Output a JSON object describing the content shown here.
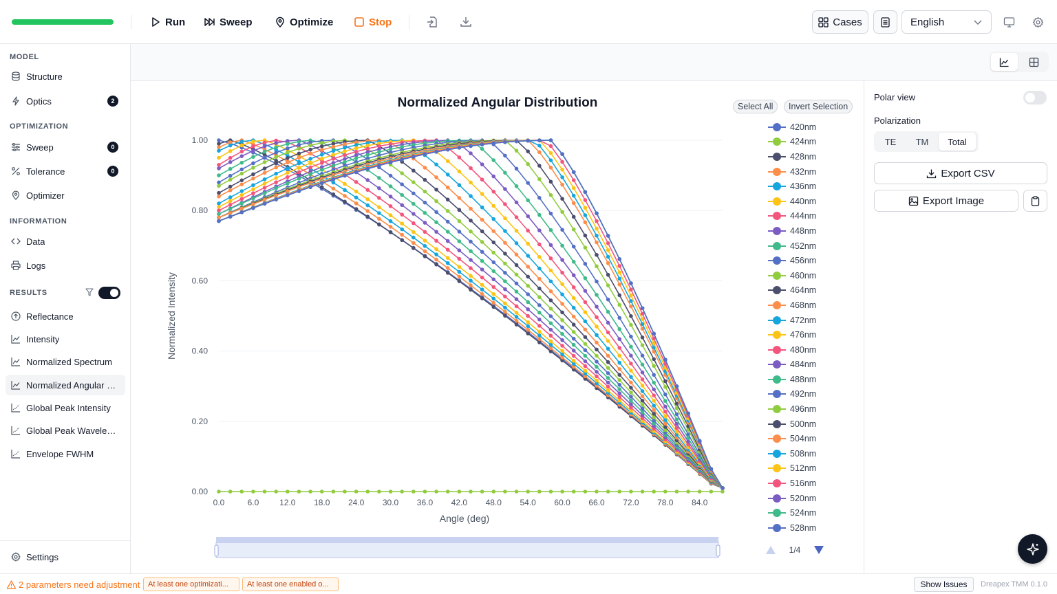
{
  "toolbar": {
    "progress_value": 1.0,
    "run": "Run",
    "sweep": "Sweep",
    "optimize": "Optimize",
    "stop": "Stop",
    "cases": "Cases",
    "language": "English"
  },
  "sidebar": {
    "model_title": "MODEL",
    "structure": "Structure",
    "optics": "Optics",
    "optics_badge": "2",
    "optimization_title": "OPTIMIZATION",
    "sweep": "Sweep",
    "sweep_badge": "0",
    "tolerance": "Tolerance",
    "tolerance_badge": "0",
    "optimizer": "Optimizer",
    "information_title": "INFORMATION",
    "data": "Data",
    "logs": "Logs",
    "results_title": "RESULTS",
    "results_toggle": true,
    "reflectance": "Reflectance",
    "intensity": "Intensity",
    "normalized_spectrum": "Normalized Spectrum",
    "normalized_angular": "Normalized Angular Distribution",
    "global_peak_intensity": "Global Peak Intensity",
    "global_peak_wavelength": "Global Peak Wavelength",
    "envelope_fwhm": "Envelope FWHM",
    "settings": "Settings"
  },
  "chart_controls": {
    "select_all": "Select All",
    "invert_selection": "Invert Selection",
    "page": "1/4"
  },
  "chart_data": {
    "type": "line",
    "title": "Normalized Angular Distribution",
    "xlabel": "Angle (deg)",
    "ylabel": "Normalized Intensity",
    "xlim": [
      0,
      88
    ],
    "ylim": [
      0,
      1
    ],
    "xticks": [
      "0.0",
      "6.0",
      "12.0",
      "18.0",
      "24.0",
      "30.0",
      "36.0",
      "42.0",
      "48.0",
      "54.0",
      "60.0",
      "66.0",
      "72.0",
      "78.0",
      "84.0"
    ],
    "yticks": [
      "0.00",
      "0.20",
      "0.40",
      "0.60",
      "0.80",
      "1.00"
    ],
    "grid": true,
    "legend_position": "right",
    "legend_entries": [
      "420nm",
      "424nm",
      "428nm",
      "432nm",
      "436nm",
      "440nm",
      "444nm",
      "448nm",
      "452nm",
      "456nm",
      "460nm",
      "464nm",
      "468nm",
      "472nm",
      "476nm",
      "480nm",
      "484nm",
      "488nm",
      "492nm",
      "496nm",
      "500nm",
      "504nm",
      "508nm",
      "512nm",
      "516nm",
      "520nm",
      "524nm",
      "528nm"
    ],
    "palette": [
      "#5470c6",
      "#91cc3f",
      "#4b4e6d",
      "#fc8d4a",
      "#16a5dc",
      "#fbc416",
      "#f4557c",
      "#7b5cc3",
      "#3fba8a"
    ],
    "angles_deg": [
      0,
      2,
      4,
      6,
      8,
      10,
      12,
      14,
      16,
      18,
      20,
      22,
      24,
      26,
      28,
      30,
      32,
      34,
      36,
      38,
      40,
      42,
      44,
      46,
      48,
      50,
      52,
      54,
      56,
      58,
      60,
      62,
      64,
      66,
      68,
      70,
      72,
      74,
      76,
      78,
      80,
      82,
      84,
      86,
      88
    ],
    "series": [
      {
        "name": "420nm",
        "start": 1.0,
        "plateau_to": 0,
        "falloff_end": 87.6,
        "falloff_shape": 1.25,
        "peak": 1.0
      },
      {
        "name": "424nm",
        "start": 0.0,
        "flat": true
      },
      {
        "name": "428nm",
        "start": 0.99,
        "plateau_to": 2,
        "falloff_end": 87.6,
        "falloff_shape": 1.2,
        "peak": 1.0
      },
      {
        "name": "432nm",
        "start": 0.98,
        "plateau_to": 4,
        "falloff_end": 87.6,
        "falloff_shape": 1.2,
        "peak": 1.0
      },
      {
        "name": "436nm",
        "start": 0.97,
        "plateau_to": 6,
        "falloff_end": 87.6,
        "falloff_shape": 1.2,
        "peak": 1.0
      },
      {
        "name": "440nm",
        "start": 0.95,
        "plateau_to": 8,
        "falloff_end": 87.6,
        "falloff_shape": 1.2,
        "peak": 1.0
      },
      {
        "name": "444nm",
        "start": 0.93,
        "plateau_to": 11,
        "falloff_end": 87.6,
        "falloff_shape": 1.2,
        "peak": 1.0
      },
      {
        "name": "448nm",
        "start": 0.92,
        "plateau_to": 14,
        "falloff_end": 87.6,
        "falloff_shape": 1.2,
        "peak": 1.0
      },
      {
        "name": "452nm",
        "start": 0.9,
        "plateau_to": 17,
        "falloff_end": 87.6,
        "falloff_shape": 1.2,
        "peak": 1.0
      },
      {
        "name": "456nm",
        "start": 0.88,
        "plateau_to": 20,
        "falloff_end": 87.6,
        "falloff_shape": 1.2,
        "peak": 1.0
      },
      {
        "name": "460nm",
        "start": 0.87,
        "plateau_to": 23,
        "falloff_end": 87.6,
        "falloff_shape": 1.2,
        "peak": 1.0
      },
      {
        "name": "464nm",
        "start": 0.85,
        "plateau_to": 26,
        "falloff_end": 87.6,
        "falloff_shape": 1.2,
        "peak": 1.0
      },
      {
        "name": "468nm",
        "start": 0.84,
        "plateau_to": 29,
        "falloff_end": 87.6,
        "falloff_shape": 1.2,
        "peak": 1.0
      },
      {
        "name": "472nm",
        "start": 0.82,
        "plateau_to": 32,
        "falloff_end": 87.6,
        "falloff_shape": 1.2,
        "peak": 1.0
      },
      {
        "name": "476nm",
        "start": 0.81,
        "plateau_to": 35,
        "falloff_end": 87.6,
        "falloff_shape": 1.2,
        "peak": 1.0
      },
      {
        "name": "480nm",
        "start": 0.8,
        "plateau_to": 38,
        "falloff_end": 87.6,
        "falloff_shape": 1.2,
        "peak": 1.0
      },
      {
        "name": "484nm",
        "start": 0.79,
        "plateau_to": 41,
        "falloff_end": 87.6,
        "falloff_shape": 1.2,
        "peak": 1.0
      },
      {
        "name": "488nm",
        "start": 0.79,
        "plateau_to": 44,
        "falloff_end": 87.6,
        "falloff_shape": 1.2,
        "peak": 1.0
      },
      {
        "name": "492nm",
        "start": 0.78,
        "plateau_to": 47,
        "falloff_end": 87.6,
        "falloff_shape": 1.2,
        "peak": 1.0
      },
      {
        "name": "496nm",
        "start": 0.78,
        "plateau_to": 50,
        "falloff_end": 87.6,
        "falloff_shape": 1.2,
        "peak": 1.0
      },
      {
        "name": "500nm",
        "start": 0.78,
        "plateau_to": 52,
        "falloff_end": 87.6,
        "falloff_shape": 1.2,
        "peak": 1.0
      },
      {
        "name": "504nm",
        "start": 0.78,
        "plateau_to": 54,
        "falloff_end": 87.6,
        "falloff_shape": 1.2,
        "peak": 1.0
      },
      {
        "name": "508nm",
        "start": 0.77,
        "plateau_to": 55,
        "falloff_end": 87.6,
        "falloff_shape": 1.2,
        "peak": 1.0
      },
      {
        "name": "512nm",
        "start": 0.77,
        "plateau_to": 56,
        "falloff_end": 87.6,
        "falloff_shape": 1.2,
        "peak": 1.0
      },
      {
        "name": "516nm",
        "start": 0.77,
        "plateau_to": 57,
        "falloff_end": 87.6,
        "falloff_shape": 1.2,
        "peak": 1.0
      },
      {
        "name": "520nm",
        "start": 0.77,
        "plateau_to": 58,
        "falloff_end": 87.6,
        "falloff_shape": 1.2,
        "peak": 1.0
      },
      {
        "name": "524nm",
        "start": 0.77,
        "plateau_to": 58,
        "falloff_end": 87.6,
        "falloff_shape": 1.2,
        "peak": 1.0
      },
      {
        "name": "528nm",
        "start": 0.77,
        "plateau_to": 58,
        "falloff_end": 87.6,
        "falloff_shape": 1.2,
        "peak": 1.0
      }
    ]
  },
  "right_panel": {
    "polar_view": "Polar view",
    "polar_view_on": false,
    "polarization": "Polarization",
    "te": "TE",
    "tm": "TM",
    "total": "Total",
    "export_csv": "Export CSV",
    "export_image": "Export Image"
  },
  "statusbar": {
    "warning": "2 parameters need adjustment",
    "chip1": "At least one optimizati...",
    "chip2": "At least one enabled o...",
    "show_issues": "Show Issues",
    "version": "Dreapex TMM 0.1.0"
  }
}
